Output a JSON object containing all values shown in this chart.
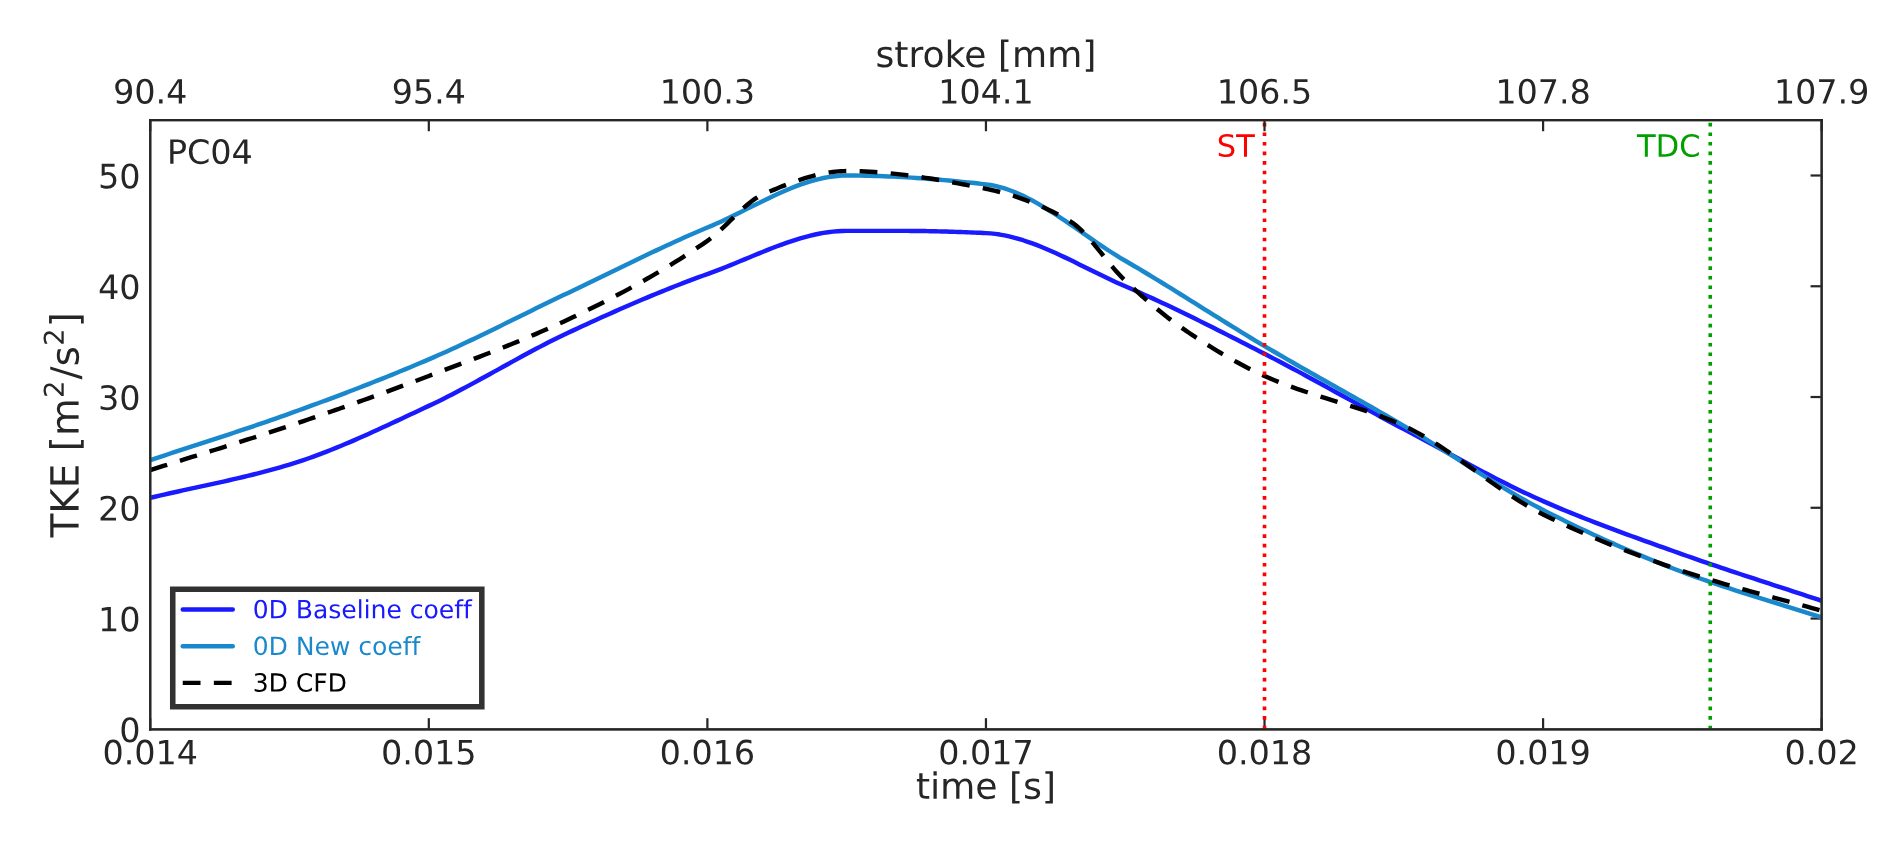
{
  "chart_data": {
    "type": "line",
    "xlabel": "time [s]",
    "ylabel": "TKE [m$^{2}$/s$^{2}$]",
    "x2label": "stroke [mm]",
    "xlim": [
      0.014,
      0.02
    ],
    "xticks": [
      0.014,
      0.015,
      0.016,
      0.017,
      0.018,
      0.019,
      0.02
    ],
    "ylim": [
      0,
      55
    ],
    "yticks": [
      0,
      10,
      20,
      30,
      40,
      50
    ],
    "grid": false,
    "legend": "bottom left",
    "annotations": [
      "PC04",
      "90.4",
      "95.4",
      "100.3",
      "104.1",
      "106.5",
      "107.8",
      "107.9"
    ],
    "ref_lines": [
      {
        "axis": "x",
        "value": 0.018,
        "label": "ST",
        "color": "#ff0000",
        "line_style": "dotted"
      },
      {
        "axis": "x",
        "value": 0.0196,
        "label": "TDC",
        "color": "#00a000",
        "line_style": "dotted"
      }
    ],
    "series": [
      {
        "name": "0D Baseline coeff",
        "color": "#1a1aff",
        "line_style": "solid",
        "x": [
          0.014,
          0.0145,
          0.015,
          0.0155,
          0.016,
          0.0165,
          0.0167,
          0.017,
          0.0175,
          0.018,
          0.0185,
          0.019,
          0.0195,
          0.02
        ],
        "values": [
          20.9,
          23.9,
          29.2,
          35.8,
          41.1,
          45.0,
          45.0,
          44.8,
          40.0,
          33.9,
          27.1,
          20.6,
          15.8,
          11.6
        ]
      },
      {
        "name": "0D New coeff",
        "color": "#1a88cc",
        "line_style": "solid",
        "x": [
          0.014,
          0.0145,
          0.015,
          0.0155,
          0.016,
          0.0165,
          0.017,
          0.0175,
          0.018,
          0.0185,
          0.019,
          0.0195,
          0.02
        ],
        "values": [
          24.3,
          28.5,
          33.4,
          39.4,
          45.3,
          50.0,
          49.2,
          42.3,
          34.6,
          27.4,
          19.8,
          14.2,
          10.1
        ]
      },
      {
        "name": "3D CFD",
        "color": "#000000",
        "line_style": "dashed",
        "x": [
          0.014,
          0.0145,
          0.015,
          0.0155,
          0.016,
          0.0162,
          0.0165,
          0.017,
          0.0173,
          0.0175,
          0.0177,
          0.018,
          0.0185,
          0.019,
          0.0195,
          0.02
        ],
        "values": [
          23.4,
          27.4,
          31.9,
          37.0,
          44.1,
          48.3,
          50.4,
          48.8,
          45.9,
          40.5,
          36.3,
          31.9,
          27.4,
          19.4,
          14.3,
          10.7
        ]
      }
    ]
  }
}
